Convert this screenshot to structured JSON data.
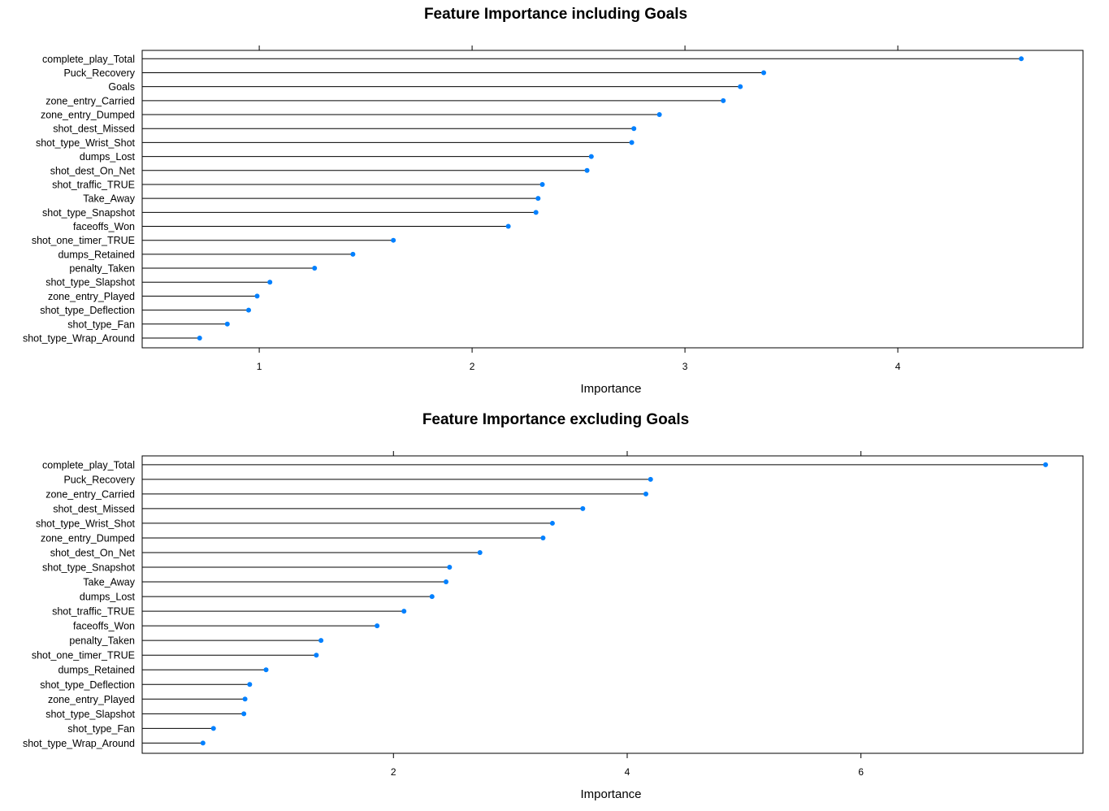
{
  "chart_data": [
    {
      "type": "dot",
      "title": "Feature Importance including Goals",
      "xlabel": "Importance",
      "ylabel": "",
      "xlim": [
        0.45,
        4.87
      ],
      "xticks": [
        1,
        2,
        3,
        4
      ],
      "grid": false,
      "legend": "none",
      "point_color": "#0080ff",
      "categories": [
        "complete_play_Total",
        "Puck_Recovery",
        "Goals",
        "zone_entry_Carried",
        "zone_entry_Dumped",
        "shot_dest_Missed",
        "shot_type_Wrist_Shot",
        "dumps_Lost",
        "shot_dest_On_Net",
        "shot_traffic_TRUE",
        "Take_Away",
        "shot_type_Snapshot",
        "faceoffs_Won",
        "shot_one_timer_TRUE",
        "dumps_Retained",
        "penalty_Taken",
        "shot_type_Slapshot",
        "zone_entry_Played",
        "shot_type_Deflection",
        "shot_type_Fan",
        "shot_type_Wrap_Around"
      ],
      "values": [
        4.58,
        3.37,
        3.26,
        3.18,
        2.88,
        2.76,
        2.75,
        2.56,
        2.54,
        2.33,
        2.31,
        2.3,
        2.17,
        1.63,
        1.44,
        1.26,
        1.05,
        0.99,
        0.95,
        0.85,
        0.72
      ]
    },
    {
      "type": "dot",
      "title": "Feature Importance excluding Goals",
      "xlabel": "Importance",
      "ylabel": "",
      "xlim": [
        -0.15,
        7.9
      ],
      "xticks": [
        2,
        4,
        6
      ],
      "grid": false,
      "legend": "none",
      "point_color": "#0080ff",
      "categories": [
        "complete_play_Total",
        "Puck_Recovery",
        "zone_entry_Carried",
        "shot_dest_Missed",
        "shot_type_Wrist_Shot",
        "zone_entry_Dumped",
        "shot_dest_On_Net",
        "shot_type_Snapshot",
        "Take_Away",
        "dumps_Lost",
        "shot_traffic_TRUE",
        "faceoffs_Won",
        "penalty_Taken",
        "shot_one_timer_TRUE",
        "dumps_Retained",
        "shot_type_Deflection",
        "zone_entry_Played",
        "shot_type_Slapshot",
        "shot_type_Fan",
        "shot_type_Wrap_Around"
      ],
      "values": [
        7.58,
        4.2,
        4.16,
        3.62,
        3.36,
        3.28,
        2.74,
        2.48,
        2.45,
        2.33,
        2.09,
        1.86,
        1.38,
        1.34,
        0.91,
        0.77,
        0.73,
        0.72,
        0.46,
        0.37
      ]
    }
  ]
}
